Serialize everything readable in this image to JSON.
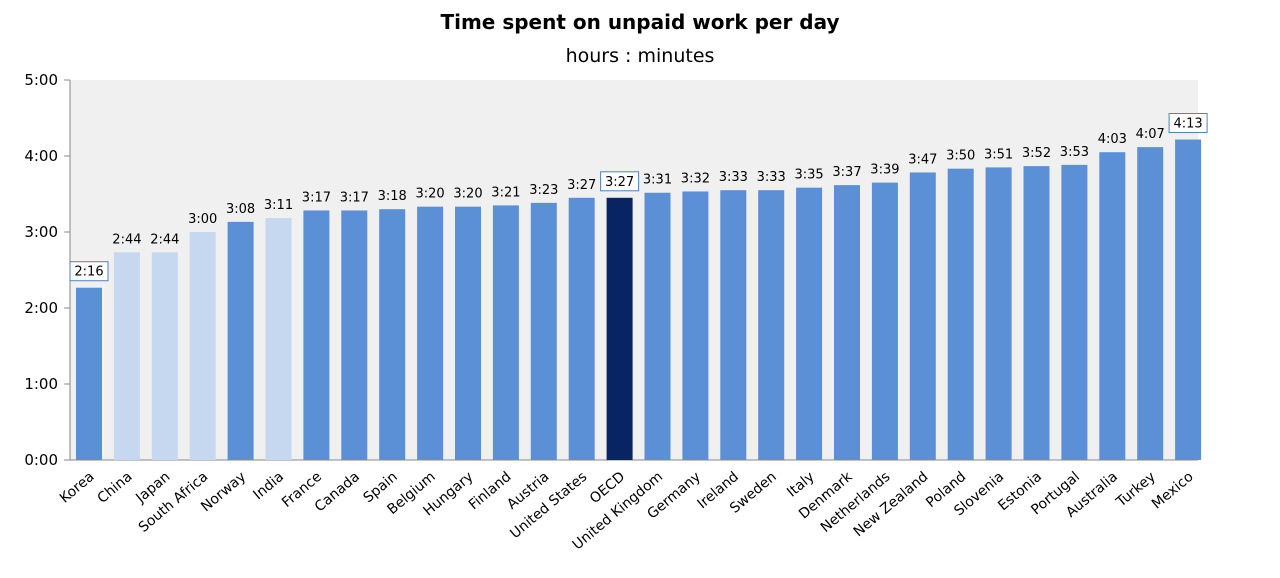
{
  "chart_data": {
    "type": "bar",
    "title": "Time spent on unpaid work per day",
    "subtitle": "hours : minutes",
    "xlabel": "",
    "ylabel": "",
    "ylim": [
      0,
      300
    ],
    "yticks": [
      0,
      60,
      120,
      180,
      240,
      300
    ],
    "ytick_labels": [
      "0:00",
      "1:00",
      "2:00",
      "3:00",
      "4:00",
      "5:00"
    ],
    "categories": [
      "Korea",
      "China",
      "Japan",
      "South Africa",
      "Norway",
      "India",
      "France",
      "Canada",
      "Spain",
      "Belgium",
      "Hungary",
      "Finland",
      "Austria",
      "United States",
      "OECD",
      "United Kingdom",
      "Germany",
      "Ireland",
      "Sweden",
      "Italy",
      "Denmark",
      "Netherlands",
      "New Zealand",
      "Poland",
      "Slovenia",
      "Estonia",
      "Portugal",
      "Australia",
      "Turkey",
      "Mexico"
    ],
    "values_minutes": [
      136,
      164,
      164,
      180,
      188,
      191,
      197,
      197,
      198,
      200,
      200,
      201,
      203,
      207,
      207,
      211,
      212,
      213,
      213,
      215,
      217,
      219,
      227,
      230,
      231,
      232,
      233,
      243,
      247,
      253
    ],
    "value_labels": [
      "2:16",
      "2:44",
      "2:44",
      "3:00",
      "3:08",
      "3:11",
      "3:17",
      "3:17",
      "3:18",
      "3:20",
      "3:20",
      "3:21",
      "3:23",
      "3:27",
      "3:27",
      "3:31",
      "3:32",
      "3:33",
      "3:33",
      "3:35",
      "3:37",
      "3:39",
      "3:47",
      "3:50",
      "3:51",
      "3:52",
      "3:53",
      "4:03",
      "4:07",
      "4:13"
    ],
    "boxed_labels": [
      "Korea",
      "OECD",
      "Mexico"
    ],
    "light_categories": [
      "China",
      "Japan",
      "South Africa",
      "India"
    ],
    "highlight_category": "OECD",
    "grid": false,
    "legend": "none",
    "colors": {
      "bar": "#5b8fd6",
      "bar_light": "#c5d8ef",
      "bar_highlight": "#082462",
      "plot_background": "#f0f0f0",
      "label_box": "#4f81bd"
    }
  }
}
